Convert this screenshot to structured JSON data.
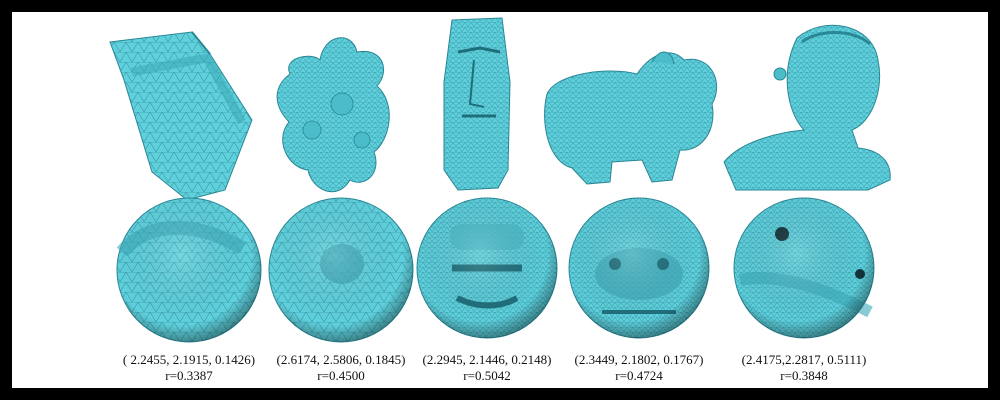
{
  "figure": {
    "models": [
      {
        "shape": "fandisk",
        "coords": "( 2.2455, 2.1915, 0.1426)",
        "radius": "r=0.3387"
      },
      {
        "shape": "bumpy",
        "coords": "(2.6174, 2.5806, 0.1845)",
        "radius": "r=0.4500"
      },
      {
        "shape": "moai",
        "coords": "(2.2945, 2.1446, 0.2148)",
        "radius": "r=0.5042"
      },
      {
        "shape": "animal",
        "coords": "(2.3449, 2.1802, 0.1767)",
        "radius": "r=0.4724"
      },
      {
        "shape": "bust",
        "coords": "(2.4175,2.2817, 0.5111)",
        "radius": "r=0.3848"
      }
    ],
    "colors": {
      "mesh_fill": "#5fd0dc",
      "mesh_edge": "#2a8795",
      "frame": "#000000",
      "background": "#ffffff"
    }
  }
}
